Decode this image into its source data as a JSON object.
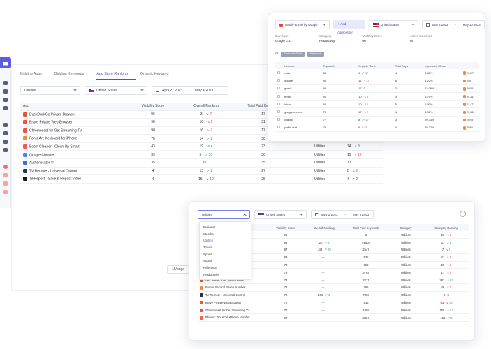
{
  "main": {
    "tabs": [
      "Bidding Apps",
      "Bidding Keywords",
      "App Store Ranking",
      "Organic Keyword"
    ],
    "active_tab": 2,
    "category": "Utilities",
    "country": "United States",
    "date_from": "April 27 2023",
    "date_sep": "-",
    "date_to": "May 4 2023",
    "columns": [
      "App",
      "Visibility Score",
      "Overall Ranking",
      "Total Paid Keywords"
    ],
    "rows": [
      {
        "app": "DuckDuckGo Private Browser",
        "color": "#de5833",
        "vis": "96",
        "rank": "3",
        "chg": "7",
        "dir": "dn",
        "kw": "17",
        "cat": "",
        "crank": "",
        "cchg": "",
        "cdir": ""
      },
      {
        "app": "Brave Private Web Browser",
        "color": "#fb542b",
        "vis": "96",
        "rank": "10",
        "chg": "2",
        "dir": "dn",
        "kw": "31",
        "cat": "",
        "crank": "",
        "cchg": "",
        "cdir": ""
      },
      {
        "app": "Chromecast for Get Streaming TV",
        "color": "#e8534a",
        "vis": "90",
        "rank": "16",
        "chg": "2",
        "dir": "dn",
        "kw": "17",
        "cat": "",
        "crank": "",
        "cchg": "",
        "cdir": ""
      },
      {
        "app": "Fonts Art: Keyboard for iPhone",
        "color": "#f08a3e",
        "vis": "70",
        "rank": "14",
        "chg": "2",
        "dir": "up",
        "kw": "30",
        "cat": "Utilities",
        "crank": "17",
        "cchg": "8",
        "cdir": "dn"
      },
      {
        "app": "Boost Cleaner - Clean Up Smart",
        "color": "#ef5b5b",
        "vis": "43",
        "rank": "19",
        "chg": "4",
        "dir": "up",
        "kw": "23",
        "cat": "Utilities",
        "crank": "14",
        "cchg": "8",
        "cdir": "up"
      },
      {
        "app": "Google Chrome",
        "color": "#4285f4",
        "vis": "39",
        "rank": "5",
        "chg": "33",
        "dir": "up",
        "kw": "36",
        "cat": "Utilities",
        "crank": "15",
        "cchg": "12",
        "cdir": "dn"
      },
      {
        "app": "Authenticator ®",
        "color": "#3a6fe0",
        "vis": "35",
        "rank": "15",
        "chg": "",
        "dir": "",
        "kw": "35",
        "cat": "Utilities",
        "crank": "13",
        "cchg": "",
        "cdir": ""
      },
      {
        "app": "TV Remote - Universal Control",
        "color": "#2c3144",
        "vis": "4",
        "rank": "13",
        "chg": "2",
        "dir": "up",
        "kw": "27",
        "cat": "Utilities",
        "crank": "8",
        "cchg": "2",
        "cdir": "dn"
      },
      {
        "app": "TikRepost - Save & Repost Video",
        "color": "#1b1b1b",
        "vis": "4",
        "rank": "15",
        "chg": "12",
        "dir": "dn",
        "kw": "25",
        "cat": "Utilities",
        "crank": "4",
        "cchg": "2",
        "cdir": "up"
      }
    ],
    "pagination": "15/page"
  },
  "topright": {
    "app_select": "Gmail - Email by Google",
    "add_btn": "+ Add competitor",
    "country": "United States",
    "date_from": "May 3 2023",
    "date_sep": "-",
    "date_to": "May 10 2023",
    "meta": [
      {
        "k": "Developer",
        "v": "Google LLC"
      },
      {
        "k": "Category",
        "v": "Productivity"
      },
      {
        "k": "Visibility Score",
        "v": "90"
      },
      {
        "k": "Active Countries",
        "v": "66"
      }
    ],
    "chips": [
      "Exclusive Field",
      "Keywords"
    ],
    "columns": [
      "Keyword",
      "Popularity",
      "Organic Rank",
      "Total Apps",
      "Impression Share"
    ],
    "rows": [
      {
        "kw": "outlet",
        "pop": "84",
        "rank": "1",
        "chg": "17",
        "dir": "up",
        "apps": "4",
        "share": "6.85%",
        "top": "20,277"
      },
      {
        "kw": "doodle",
        "pop": "90",
        "rank": "11",
        "chg": "11",
        "dir": "dn",
        "apps": "6",
        "share": "5.22%",
        "top": "20/6"
      },
      {
        "kw": "gmail",
        "pop": "93",
        "rank": "17",
        "chg": "0",
        "dir": "",
        "apps": "3",
        "share": "23.09%",
        "top": "20/58"
      },
      {
        "kw": "email",
        "pop": "91",
        "rank": "10",
        "chg": "3",
        "dir": "dn",
        "apps": "3",
        "share": "1.79%",
        "top": "20,387"
      },
      {
        "kw": "inbox",
        "pop": "90",
        "rank": "10",
        "chg": "2",
        "dir": "up",
        "apps": "5",
        "share": "6.50%",
        "top": "22,477"
      },
      {
        "kw": "google chrome",
        "pop": "78",
        "rank": "17",
        "chg": "7",
        "dir": "dn",
        "apps": "4",
        "share": "4.96%",
        "top": "20,386"
      },
      {
        "kw": "contact",
        "pop": "77",
        "rank": "8",
        "chg": "10",
        "dir": "up",
        "apps": "3",
        "share": "20.73%",
        "top": "20/95"
      },
      {
        "kw": "prefix mail",
        "pop": "73",
        "rank": "9",
        "chg": "3",
        "dir": "dn",
        "apps": "4",
        "share": "20.77%",
        "top": "20/60"
      }
    ]
  },
  "bottom": {
    "category": "Utilities",
    "country": "United States",
    "date_from": "May 2 2023",
    "date_sep": "-",
    "date_to": "May 9 2023",
    "dropdown": [
      "Business",
      "Weather",
      "Utilities",
      "Travel",
      "Sports",
      "Social",
      "Reference",
      "Productivity"
    ],
    "dropdown_selected": 2,
    "columns": [
      "App",
      "Visibility Score",
      "Overall Ranking",
      "Total Paid Keywords",
      "Category",
      "Category Ranking"
    ],
    "rows": [
      {
        "app": "",
        "color": "",
        "vis": "95",
        "rank": "- -",
        "chg": "",
        "dir": "",
        "kw": "5",
        "cat": "Utilities",
        "crank": "26",
        "cchg": "9",
        "cdir": "dn"
      },
      {
        "app": "",
        "color": "",
        "vis": "95",
        "rank": "20",
        "chg": "9",
        "dir": "up",
        "kw": "75608",
        "cat": "Utilities",
        "crank": "21",
        "cchg": "4",
        "cdir": "up"
      },
      {
        "app": "",
        "color": "",
        "vis": "87",
        "rank": "142",
        "chg": "28",
        "dir": "up",
        "kw": "2547",
        "cat": "Utilities",
        "crank": "7",
        "cchg": "8",
        "cdir": "dn"
      },
      {
        "app": "",
        "color": "",
        "vis": "83",
        "rank": "- -",
        "chg": "",
        "dir": "",
        "kw": "625",
        "cat": "Utilities",
        "crank": "41",
        "cchg": "7",
        "cdir": "dn"
      },
      {
        "app": "",
        "color": "",
        "vis": "73",
        "rank": "- -",
        "chg": "",
        "dir": "",
        "kw": "625",
        "cat": "Utilities",
        "crank": "25",
        "cchg": "2",
        "cdir": "dn"
      },
      {
        "app": "",
        "color": "",
        "vis": "79",
        "rank": "- -",
        "chg": "",
        "dir": "",
        "kw": "3764",
        "cat": "Utilities",
        "crank": "17",
        "cchg": "5",
        "cdir": "dn"
      },
      {
        "app": "PDF Editor, PDF Book Reader",
        "color": "#e8534a",
        "vis": "73",
        "rank": "- -",
        "chg": "",
        "dir": "",
        "kw": "2271",
        "cat": "Utilities",
        "crank": "283",
        "cchg": "27",
        "cdir": "up"
      },
      {
        "app": "Burner Second Phone Number",
        "color": "#f28b3c",
        "vis": "73",
        "rank": "- -",
        "chg": "",
        "dir": "",
        "kw": "765",
        "cat": "Utilities",
        "crank": "46",
        "cchg": "7",
        "cdir": "dn"
      },
      {
        "app": "TV Remote - Universal Control",
        "color": "#2c3144",
        "vis": "72",
        "rank": "168",
        "chg": "6",
        "dir": "up",
        "kw": "7368",
        "cat": "Utilities",
        "crank": "9",
        "cchg": "0",
        "cdir": ""
      },
      {
        "app": "Brave Private Web Browser",
        "color": "#fb542b",
        "vis": "72",
        "rank": "- -",
        "chg": "",
        "dir": "",
        "kw": "916",
        "cat": "Utilities",
        "crank": "63",
        "cchg": "19",
        "cdir": "dn"
      },
      {
        "app": "Chromecast for Get Streaming TV",
        "color": "#e8534a",
        "vis": "73",
        "rank": "- -",
        "chg": "",
        "dir": "",
        "kw": "4465",
        "cat": "Utilities",
        "crank": "155",
        "cchg": "12",
        "cdir": "up"
      },
      {
        "app": "Phoner: Text+Call+Phone Number",
        "color": "#ef6b3a",
        "vis": "67",
        "rank": "- -",
        "chg": "",
        "dir": "",
        "kw": "3827",
        "cat": "Utilities",
        "crank": "155",
        "cchg": "6",
        "cdir": "up"
      }
    ]
  }
}
